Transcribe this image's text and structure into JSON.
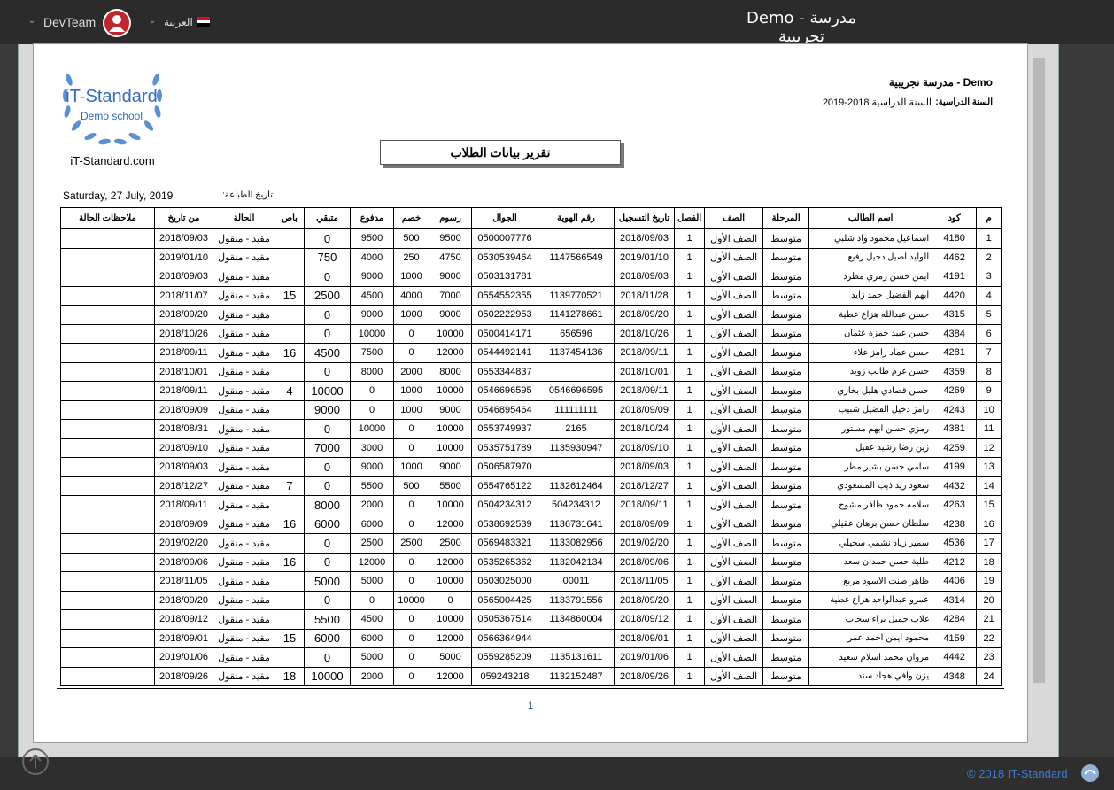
{
  "header": {
    "title": "Demo - مدرسة تجريبية",
    "user": "DevTeam",
    "language": "العربية"
  },
  "report": {
    "school": "Demo - مدرسة تجريبية",
    "year_label": "السنة الدراسية:",
    "year_value": "السنة الدراسية 2018-2019",
    "logo_name": "iT-Standard",
    "logo_sub": "Demo school",
    "logo_url": "iT-Standard.com",
    "title": "تقرير بيانات الطلاب",
    "print_label": "تاريخ الطباعة:",
    "print_date": "Saturday, 27 July, 2019",
    "page": "1"
  },
  "table": {
    "headers": [
      "م",
      "كود",
      "اسم الطالب",
      "المرحلة",
      "الصف",
      "الفصل",
      "تاريخ التسجيل",
      "رقم الهوية",
      "الجوال",
      "رسوم",
      "خصم",
      "مدفوع",
      "متبقي",
      "باص",
      "الحالة",
      "من تاريخ",
      "ملاحظات الحالة"
    ],
    "rows": [
      [
        "1",
        "4180",
        "اسماعيل محمود واد شلبي",
        "متوسط",
        "الصف الأول",
        "1",
        "2018/09/03",
        null,
        "0500007776",
        "9500",
        "500",
        "9500",
        "0",
        null,
        "مقيد - منقول",
        "2018/09/03",
        null
      ],
      [
        "2",
        "4462",
        "الوليد اصيل دخيل رفيع",
        "متوسط",
        "الصف الأول",
        "1",
        "2019/01/10",
        "1147566549",
        "0530539464",
        "4750",
        "250",
        "4000",
        "750",
        null,
        "مقيد - منقول",
        "2019/01/10",
        null
      ],
      [
        "3",
        "4191",
        "ايمن حسن رمزي مطرد",
        "متوسط",
        "الصف الأول",
        "1",
        "2018/09/03",
        null,
        "0503131781",
        "9000",
        "1000",
        "9000",
        "0",
        null,
        "مقيد - منقول",
        "2018/09/03",
        null
      ],
      [
        "4",
        "4420",
        "ابهم الفضيل حمد زايد",
        "متوسط",
        "الصف الأول",
        "1",
        "2018/11/28",
        "1139770521",
        "0554552355",
        "7000",
        "4000",
        "4500",
        "2500",
        "15",
        "مقيد - منقول",
        "2018/11/07",
        null
      ],
      [
        "5",
        "4315",
        "حسن عبدالله هزاع عطية",
        "متوسط",
        "الصف الأول",
        "1",
        "2018/09/20",
        "1141278661",
        "0502222953",
        "9000",
        "1000",
        "9000",
        "0",
        null,
        "مقيد - منقول",
        "2018/09/20",
        null
      ],
      [
        "6",
        "4384",
        "حسن عبيد حمزة عثمان",
        "متوسط",
        "الصف الأول",
        "1",
        "2018/10/26",
        "656596",
        "0500414171",
        "10000",
        "0",
        "10000",
        "0",
        null,
        "مقيد - منقول",
        "2018/10/26",
        null
      ],
      [
        "7",
        "4281",
        "حسن عماد رامز علاء",
        "متوسط",
        "الصف الأول",
        "1",
        "2018/09/11",
        "1137454136",
        "0544492141",
        "12000",
        "0",
        "7500",
        "4500",
        "16",
        "مقيد - منقول",
        "2018/09/11",
        null
      ],
      [
        "8",
        "4359",
        "حسن غرم طالب زويد",
        "متوسط",
        "الصف الأول",
        "1",
        "2018/10/01",
        null,
        "0553344837",
        "8000",
        "2000",
        "8000",
        "0",
        null,
        "مقيد - منقول",
        "2018/10/01",
        null
      ],
      [
        "9",
        "4269",
        "حسن قصادي هليل بخاري",
        "متوسط",
        "الصف الأول",
        "1",
        "2018/09/11",
        "0546696595",
        "0546696595",
        "10000",
        "1000",
        "0",
        "10000",
        "4",
        "مقيد - منقول",
        "2018/09/11",
        null
      ],
      [
        "10",
        "4243",
        "رامز دخيل الفضيل شبيب",
        "متوسط",
        "الصف الأول",
        "1",
        "2018/09/09",
        "111111111",
        "0546895464",
        "9000",
        "1000",
        "0",
        "9000",
        null,
        "مقيد - منقول",
        "2018/09/09",
        null
      ],
      [
        "11",
        "4381",
        "رمزي حسن ابهم مستور",
        "متوسط",
        "الصف الأول",
        "1",
        "2018/10/24",
        "2165",
        "0553749937",
        "10000",
        "0",
        "10000",
        "0",
        null,
        "مقيد - منقول",
        "2018/08/31",
        null
      ],
      [
        "12",
        "4259",
        "زين رضا رشيد عقيل",
        "متوسط",
        "الصف الأول",
        "1",
        "2018/09/10",
        "1135930947",
        "0535751789",
        "10000",
        "0",
        "3000",
        "7000",
        null,
        "مقيد - منقول",
        "2018/09/10",
        null
      ],
      [
        "13",
        "4199",
        "سامي حسن بشير مطر",
        "متوسط",
        "الصف الأول",
        "1",
        "2018/09/03",
        null,
        "0506587970",
        "9000",
        "1000",
        "9000",
        "0",
        null,
        "مقيد - منقول",
        "2018/09/03",
        null
      ],
      [
        "14",
        "4432",
        "سعود زيد ذيب المسعودي",
        "متوسط",
        "الصف الأول",
        "1",
        "2018/12/27",
        "1132612464",
        "0554765122",
        "5500",
        "500",
        "5500",
        "0",
        "7",
        "مقيد - منقول",
        "2018/12/27",
        null
      ],
      [
        "15",
        "4263",
        "سلامه حمود ظافر مشوح",
        "متوسط",
        "الصف الأول",
        "1",
        "2018/09/11",
        "504234312",
        "0504234312",
        "10000",
        "0",
        "2000",
        "8000",
        null,
        "مقيد - منقول",
        "2018/09/11",
        null
      ],
      [
        "16",
        "4238",
        "سلطان حسن برهان عقيلي",
        "متوسط",
        "الصف الأول",
        "1",
        "2018/09/09",
        "1136731641",
        "0538692539",
        "12000",
        "0",
        "6000",
        "6000",
        "16",
        "مقيد - منقول",
        "2018/09/09",
        null
      ],
      [
        "17",
        "4536",
        "سمير زياد نشمي سخيلي",
        "متوسط",
        "الصف الأول",
        "1",
        "2019/02/20",
        "1133082956",
        "0569483321",
        "2500",
        "2500",
        "2500",
        "0",
        null,
        "مقيد - منقول",
        "2019/02/20",
        null
      ],
      [
        "18",
        "4212",
        "طلبة حسن حمدان سعد",
        "متوسط",
        "الصف الأول",
        "1",
        "2018/09/06",
        "1132042134",
        "0535265362",
        "12000",
        "0",
        "12000",
        "0",
        "16",
        "مقيد - منقول",
        "2018/09/06",
        null
      ],
      [
        "19",
        "4406",
        "ظاهر صنت الاسود مربع",
        "متوسط",
        "الصف الأول",
        "1",
        "2018/11/05",
        "00011",
        "0503025000",
        "10000",
        "0",
        "5000",
        "5000",
        null,
        "مقيد - منقول",
        "2018/11/05",
        null
      ],
      [
        "20",
        "4314",
        "عمرو عبدالواحد هزاع عطية",
        "متوسط",
        "الصف الأول",
        "1",
        "2018/09/20",
        "1133791556",
        "0565004425",
        "0",
        "10000",
        "0",
        "0",
        null,
        "مقيد - منقول",
        "2018/09/20",
        null
      ],
      [
        "21",
        "4284",
        "غلاب جميل براء سحاب",
        "متوسط",
        "الصف الأول",
        "1",
        "2018/09/12",
        "1134860004",
        "0505367514",
        "10000",
        "0",
        "4500",
        "5500",
        null,
        "مقيد - منقول",
        "2018/09/12",
        null
      ],
      [
        "22",
        "4159",
        "محمود ايمن احمد عمر",
        "متوسط",
        "الصف الأول",
        "1",
        "2018/09/01",
        null,
        "0566364944",
        "12000",
        "0",
        "6000",
        "6000",
        "15",
        "مقيد - منقول",
        "2018/09/01",
        null
      ],
      [
        "23",
        "4442",
        "مروان محمد اسلام سعيد",
        "متوسط",
        "الصف الأول",
        "1",
        "2019/01/06",
        "1135131611",
        "0559285209",
        "5000",
        "0",
        "5000",
        "0",
        null,
        "مقيد - منقول",
        "2019/01/06",
        null
      ],
      [
        "24",
        "4348",
        "يزن وافي هجاد سند",
        "متوسط",
        "الصف الأول",
        "1",
        "2018/09/26",
        "1132152487",
        "059243218",
        "12000",
        "0",
        "2000",
        "10000",
        "18",
        "مقيد - منقول",
        "2018/09/26",
        null
      ]
    ]
  },
  "footer": {
    "copyright": "© 2018 IT-Standard"
  }
}
